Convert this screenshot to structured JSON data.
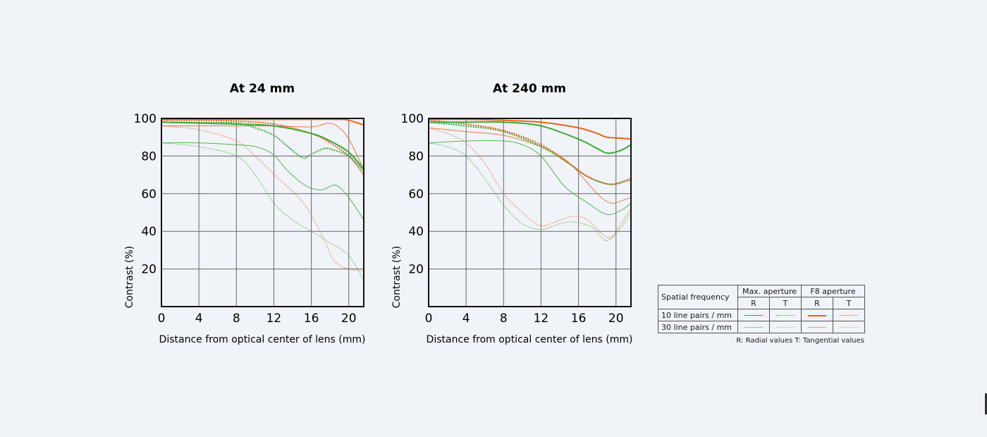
{
  "colors": {
    "max_aperture": "#3aaa35",
    "f8_aperture": "#e8641e"
  },
  "chart_data": [
    {
      "type": "line",
      "title": "At 24 mm",
      "xlabel": "Distance from optical center of lens (mm)",
      "ylabel": "Contrast (%)",
      "xlim": [
        0,
        21.6
      ],
      "ylim": [
        0,
        100
      ],
      "xticks": [
        "0",
        "4",
        "8",
        "12",
        "16",
        "20"
      ],
      "yticks": [
        "20",
        "40",
        "60",
        "80",
        "100"
      ],
      "grid": true,
      "series": [
        {
          "key": "f8_t30",
          "x": [
            0,
            4,
            8,
            10,
            12.5,
            15,
            16.5,
            17.5,
            18.5,
            20,
            21.6
          ],
          "y": [
            96,
            94,
            88,
            80,
            68,
            56,
            44,
            34,
            24,
            20,
            19
          ]
        },
        {
          "key": "max_t30",
          "x": [
            0,
            4,
            8,
            10,
            12,
            14,
            16,
            18,
            20,
            21.6
          ],
          "y": [
            87,
            85,
            80,
            70,
            55,
            46,
            40,
            34,
            27,
            14
          ]
        },
        {
          "key": "max_r30",
          "x": [
            0,
            4,
            8,
            10,
            11.9,
            13.5,
            15.5,
            17.1,
            18.6,
            20,
            21.6
          ],
          "y": [
            87,
            87,
            86,
            85,
            81,
            72,
            64,
            62,
            64.5,
            58,
            46
          ]
        },
        {
          "key": "f8_r30",
          "x": [
            0,
            4,
            8,
            12,
            16,
            17.9,
            19,
            20,
            21.6
          ],
          "y": [
            96,
            96,
            96,
            96,
            95.5,
            97.5,
            95,
            89,
            73
          ]
        },
        {
          "key": "f8_t10",
          "x": [
            0,
            4,
            8,
            12,
            16,
            18,
            20,
            21.6
          ],
          "y": [
            99,
            99,
            98.5,
            97,
            92,
            87,
            80,
            70
          ]
        },
        {
          "key": "max_t10",
          "x": [
            0,
            4,
            8,
            10,
            12,
            13.5,
            15.1,
            16,
            17.4,
            18.5,
            20,
            21.6
          ],
          "y": [
            98,
            97.8,
            97.5,
            95,
            91,
            85,
            79,
            81,
            84,
            83,
            80,
            72
          ]
        },
        {
          "key": "max_r10",
          "x": [
            0,
            4,
            8,
            12,
            16,
            18,
            20,
            21.6
          ],
          "y": [
            98,
            97.5,
            97,
            96,
            92,
            88,
            82,
            73
          ]
        },
        {
          "key": "f8_r10",
          "x": [
            0,
            4,
            8,
            12,
            16,
            19,
            20,
            21.6
          ],
          "y": [
            99.5,
            99.5,
            99.5,
            99.5,
            99.5,
            99.5,
            99,
            96.5
          ]
        }
      ]
    },
    {
      "type": "line",
      "title": "At 240 mm",
      "xlabel": "Distance from optical center of lens (mm)",
      "ylabel": "Contrast (%)",
      "xlim": [
        0,
        21.6
      ],
      "ylim": [
        0,
        100
      ],
      "xticks": [
        "0",
        "4",
        "8",
        "12",
        "16",
        "20"
      ],
      "yticks": [
        "20",
        "40",
        "60",
        "80",
        "100"
      ],
      "grid": true,
      "series": [
        {
          "key": "max_t30",
          "x": [
            0,
            2,
            4,
            6,
            8,
            10,
            12,
            14,
            15.5,
            17.5,
            19,
            20.5,
            21.6
          ],
          "y": [
            87,
            85,
            80,
            68,
            54,
            44,
            41,
            44,
            45,
            42,
            35,
            42,
            50
          ]
        },
        {
          "key": "f8_t30",
          "x": [
            0,
            2,
            4,
            6,
            8,
            10,
            12,
            14,
            15.5,
            17,
            19.2,
            20.5,
            21.6
          ],
          "y": [
            95,
            92,
            87,
            76,
            60,
            50,
            43,
            46,
            48,
            46,
            36.5,
            44,
            52
          ]
        },
        {
          "key": "max_r30",
          "x": [
            0,
            4,
            8,
            10,
            12,
            14.5,
            17,
            19,
            20.5,
            21.6
          ],
          "y": [
            87,
            88,
            88,
            86,
            80,
            64,
            55,
            49,
            51,
            55
          ]
        },
        {
          "key": "f8_r30",
          "x": [
            0,
            4,
            8,
            12,
            14,
            15.5,
            18,
            19.5,
            21,
            21.6
          ],
          "y": [
            95,
            93,
            91,
            85,
            80,
            74,
            60,
            55,
            57,
            58
          ]
        },
        {
          "key": "max_t10",
          "x": [
            0,
            4,
            8,
            12,
            15,
            17,
            19.3,
            21,
            21.6
          ],
          "y": [
            98,
            96,
            93,
            85,
            76,
            69,
            65,
            66.5,
            67.5
          ]
        },
        {
          "key": "f8_t10",
          "x": [
            0,
            4,
            8,
            12,
            15,
            17,
            19.3,
            21,
            21.6
          ],
          "y": [
            99,
            97,
            93.5,
            86,
            76,
            69,
            65,
            67,
            68.5
          ]
        },
        {
          "key": "max_r10",
          "x": [
            0,
            4,
            8,
            12,
            16,
            18,
            19.1,
            20.5,
            21.6
          ],
          "y": [
            98,
            98,
            98,
            96,
            89,
            84,
            81.5,
            83,
            86
          ]
        },
        {
          "key": "f8_r10",
          "x": [
            0,
            4,
            8,
            12,
            16,
            18,
            19,
            20.5,
            21.6
          ],
          "y": [
            99.5,
            99.5,
            99,
            98,
            95,
            92,
            90,
            89.5,
            89
          ]
        }
      ]
    }
  ],
  "legend": {
    "spatial_frequency": "Spatial frequency",
    "max_aperture": "Max. aperture",
    "f8_aperture": "F8 aperture",
    "r": "R",
    "t": "T",
    "row10": "10 line pairs / mm",
    "row30": "30 line pairs / mm",
    "note": "R: Radial values  T: Tangential values"
  }
}
